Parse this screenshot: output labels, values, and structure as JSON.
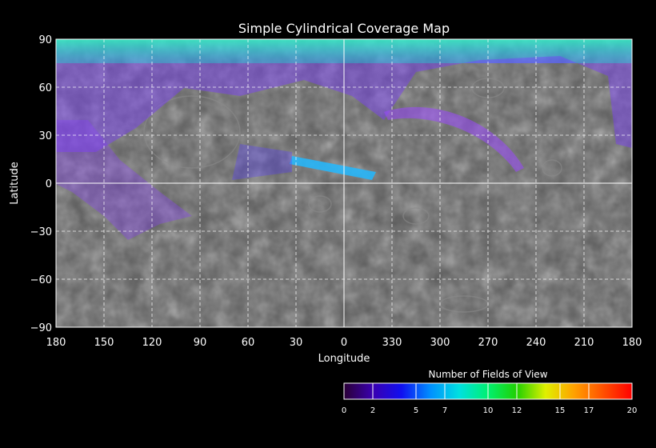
{
  "title": "Simple Cylindrical Coverage Map",
  "map": {
    "xlabel": "Longitude",
    "ylabel": "Latitude",
    "x_tick_labels": [
      "180",
      "150",
      "120",
      "90",
      "60",
      "30",
      "0",
      "330",
      "300",
      "270",
      "240",
      "210",
      "180"
    ],
    "y_tick_labels": [
      "90",
      "60",
      "30",
      "0",
      "−30",
      "−60",
      "−90"
    ],
    "grid": true,
    "grid_style": "dashed",
    "background": "grayscale planetary surface mosaic",
    "coverage_regions": [
      {
        "label": "north polar cap",
        "lon_range": [
          180,
          -180
        ],
        "lat_range": [
          70,
          90
        ],
        "fov_count": 11
      },
      {
        "label": "northern band",
        "lon_range": [
          180,
          -180
        ],
        "lat_range": [
          30,
          72
        ],
        "fov_count": 3
      },
      {
        "label": "arc east",
        "fov_count": 3
      },
      {
        "label": "equatorial streak",
        "lon_center": 5,
        "lat_center": 15,
        "fov_count": 7
      }
    ]
  },
  "colorbar": {
    "title": "Number of Fields of View",
    "ticks": [
      "0",
      "2",
      "5",
      "7",
      "10",
      "12",
      "15",
      "17",
      "20"
    ],
    "min": 0,
    "max": 20,
    "colors": [
      "#3a004a",
      "#1a00d0",
      "#0070ff",
      "#00c8ff",
      "#00ff90",
      "#20e000",
      "#f0e000",
      "#ff8000",
      "#ff0000"
    ]
  },
  "colors": {
    "background": "#000000",
    "grid": "#ffffff",
    "coverage_low": "#8a40ff",
    "coverage_polar": "#2ef0c0"
  }
}
